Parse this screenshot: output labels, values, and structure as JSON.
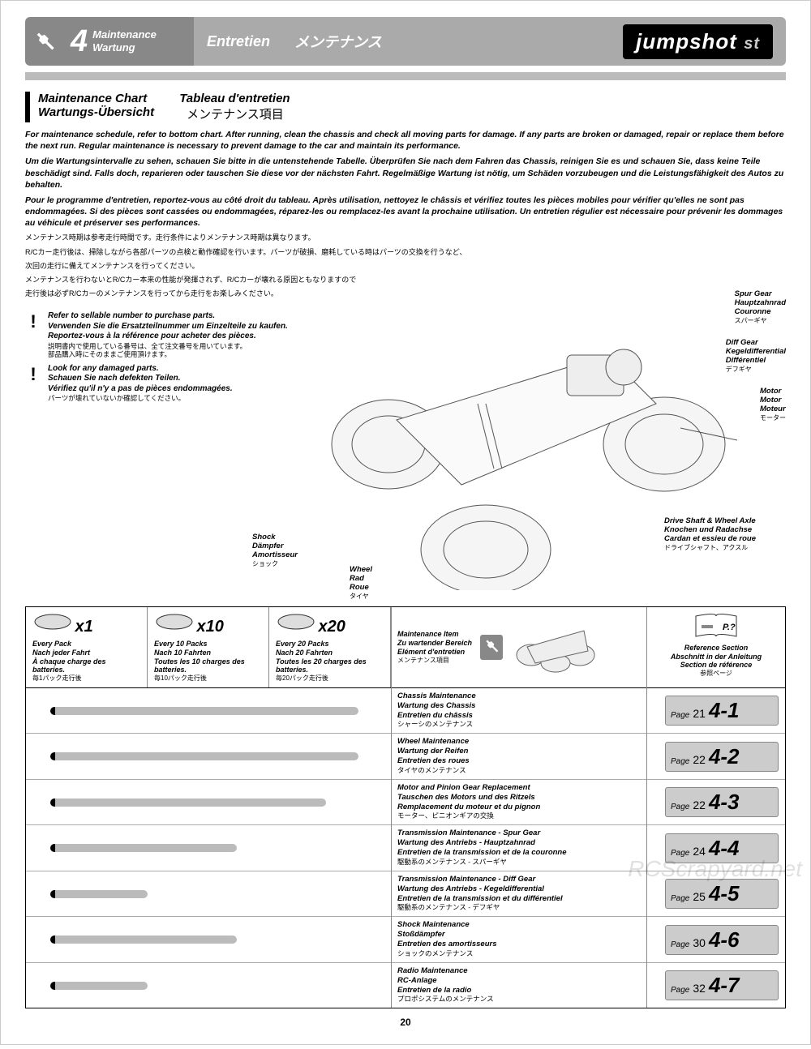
{
  "header": {
    "section_num": "4",
    "title_en": "Maintenance",
    "title_de": "Wartung",
    "title_fr": "Entretien",
    "title_jp": "メンテナンス",
    "logo_main": "jumpshot",
    "logo_sub": "st"
  },
  "chart_title": {
    "en": "Maintenance Chart",
    "de": "Wartungs-Übersicht",
    "fr": "Tableau d'entretien",
    "jp": "メンテナンス項目"
  },
  "intro": {
    "en": "For maintenance schedule, refer to bottom chart. After running, clean the chassis and check all moving parts for damage. If any parts are broken or damaged, repair or replace them before the next run. Regular maintenance is necessary to prevent damage to the car and maintain its performance.",
    "de": "Um die Wartungsintervalle zu sehen, schauen Sie bitte in die untenstehende Tabelle. Überprüfen Sie nach dem Fahren das Chassis, reinigen Sie es und schauen Sie, dass keine Teile beschädigt sind. Falls doch, reparieren oder tauschen Sie diese vor der nächsten Fahrt. Regelmäßige Wartung ist nötig, um Schäden vorzubeugen und die Leistungsfähigkeit des Autos zu behalten.",
    "fr": "Pour le programme d'entretien, reportez-vous au côté droit du tableau. Après utilisation, nettoyez le châssis et vérifiez toutes les pièces mobiles pour vérifier qu'elles ne sont pas endommagées. Si des pièces sont cassées ou endommagées, réparez-les ou remplacez-les avant la prochaine utilisation. Un entretien régulier est nécessaire pour prévenir les dommages au véhicule et préserver ses performances.",
    "jp1": "メンテナンス時期は参考走行時間です。走行条件によりメンテナンス時期は異なります。",
    "jp2": "R/Cカー走行後は、掃除しながら各部パーツの点検と動作確認を行います。パーツが破損、磨耗している時はパーツの交換を行うなど、",
    "jp3": "次回の走行に備えてメンテナンスを行ってください。",
    "jp4": "メンテナンスを行わないとR/Cカー本来の性能が発揮されず、R/Cカーが壊れる原因ともなりますので",
    "jp5": "走行後は必ずR/Cカーのメンテナンスを行ってから走行をお楽しみください。"
  },
  "notes": {
    "n1_en": "Refer to sellable number to purchase parts.",
    "n1_de": "Verwenden Sie die Ersatzteilnummer um Einzelteile zu kaufen.",
    "n1_fr": "Reportez-vous à la référence pour acheter des pièces.",
    "n1_jp1": "説明書内で使用している番号は、全て注文番号を用いています。",
    "n1_jp2": "部品購入時にそのままご使用頂けます。",
    "n2_en": "Look for any damaged parts.",
    "n2_de": "Schauen Sie nach defekten Teilen.",
    "n2_fr": "Vérifiez qu'il n'y a pas de pièces endommagées.",
    "n2_jp": "パーツが壊れていないか確認してください。"
  },
  "parts": {
    "spur": {
      "en": "Spur Gear",
      "de": "Hauptzahnrad",
      "fr": "Couronne",
      "jp": "スパーギヤ"
    },
    "diff": {
      "en": "Diff Gear",
      "de": "Kegeldifferential",
      "fr": "Différentiel",
      "jp": "デフギヤ"
    },
    "motor": {
      "en": "Motor",
      "de": "Motor",
      "fr": "Moteur",
      "jp": "モーター"
    },
    "drive": {
      "en": "Drive Shaft & Wheel Axle",
      "de": "Knochen und Radachse",
      "fr": "Cardan et essieu de roue",
      "jp": "ドライブシャフト、アクスル"
    },
    "shock": {
      "en": "Shock",
      "de": "Dämpfer",
      "fr": "Amortisseur",
      "jp": "ショック"
    },
    "wheel": {
      "en": "Wheel",
      "de": "Rad",
      "fr": "Roue",
      "jp": "タイヤ"
    }
  },
  "table_head": {
    "x1": "x1",
    "x10": "x10",
    "x20": "x20",
    "p1_en": "Every Pack",
    "p1_de": "Nach jeder Fahrt",
    "p1_fr": "À chaque charge des batteries.",
    "p1_jp": "毎1パック走行後",
    "p10_en": "Every 10 Packs",
    "p10_de": "Nach 10 Fahrten",
    "p10_fr": "Toutes les 10 charges des batteries.",
    "p10_jp": "毎10パック走行後",
    "p20_en": "Every 20 Packs",
    "p20_de": "Nach 20 Fahrten",
    "p20_fr": "Toutes les 20 charges des batteries.",
    "p20_jp": "毎20パック走行後",
    "item_en": "Maintenance Item",
    "item_de": "Zu wartender Bereich",
    "item_fr": "Elément d'entretien",
    "item_jp": "メンテナンス項目",
    "ref_en": "Reference Section",
    "ref_de": "Abschnitt in der Anleitung",
    "ref_fr": "Section de référence",
    "ref_jp": "参照ページ",
    "p_q": "P.?"
  },
  "rows": [
    {
      "bar_len": 380,
      "en": "Chassis Maintenance",
      "de": "Wartung des Chassis",
      "fr": "Entretien du châssis",
      "jp": "シャーシのメンテナンス",
      "page": "21",
      "sec": "4-1"
    },
    {
      "bar_len": 380,
      "en": "Wheel Maintenance",
      "de": "Wartung der Reifen",
      "fr": "Entretien des roues",
      "jp": "タイヤのメンテナンス",
      "page": "22",
      "sec": "4-2"
    },
    {
      "bar_len": 340,
      "en": "Motor and Pinion Gear Replacement",
      "de": "Tauschen des Motors und des Ritzels",
      "fr": "Remplacement du moteur et du pignon",
      "jp": "モーター、ピニオンギアの交換",
      "page": "22",
      "sec": "4-3"
    },
    {
      "bar_len": 230,
      "en": "Transmission Maintenance - Spur Gear",
      "de": "Wartung des Antriebs - Hauptzahnrad",
      "fr": "Entretien de la transmission et de la couronne",
      "jp": "駆動系のメンテナンス - スパーギヤ",
      "page": "24",
      "sec": "4-4"
    },
    {
      "bar_len": 120,
      "en": "Transmission Maintenance - Diff Gear",
      "de": "Wartung des Antriebs - Kegeldifferential",
      "fr": "Entretien de la transmission et du différentiel",
      "jp": "駆動系のメンテナンス - デフギヤ",
      "page": "25",
      "sec": "4-5"
    },
    {
      "bar_len": 230,
      "en": "Shock Maintenance",
      "de": "Stoßdämpfer",
      "fr": "Entretien des amortisseurs",
      "jp": "ショックのメンテナンス",
      "page": "30",
      "sec": "4-6"
    },
    {
      "bar_len": 120,
      "en": "Radio Maintenance",
      "de": "RC-Anlage",
      "fr": "Entretien de la radio",
      "jp": "プロポシステムのメンテナンス",
      "page": "32",
      "sec": "4-7"
    }
  ],
  "page_label": "Page",
  "page_number": "20",
  "watermark": "RCScrapyard.net"
}
